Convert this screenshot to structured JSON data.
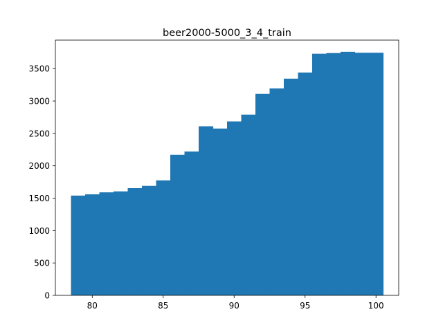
{
  "chart_data": {
    "type": "bar",
    "title": "beer2000-5000_3_4_train",
    "xlabel": "",
    "ylabel": "",
    "bin_width": 1,
    "x_start": 78.5,
    "values": [
      1540,
      1560,
      1590,
      1605,
      1655,
      1690,
      1775,
      2170,
      2220,
      2610,
      2575,
      2685,
      2790,
      3110,
      3195,
      3345,
      3440,
      3730,
      3740,
      3760,
      3745,
      3745
    ],
    "xlim": [
      77.4,
      101.6
    ],
    "ylim": [
      0,
      3940
    ],
    "xticks": [
      80,
      85,
      90,
      95,
      100
    ],
    "yticks": [
      0,
      500,
      1000,
      1500,
      2000,
      2500,
      3000,
      3500
    ],
    "bar_color": "#1f77b4",
    "grid": false,
    "legend": "none"
  }
}
